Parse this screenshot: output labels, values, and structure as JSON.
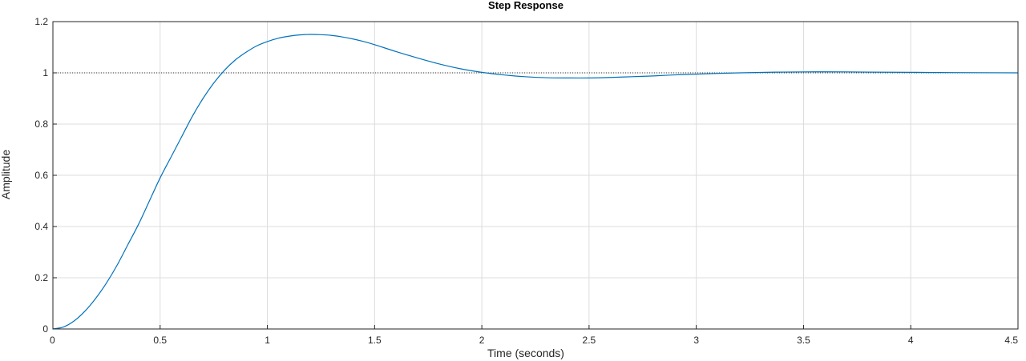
{
  "chart_data": {
    "type": "line",
    "title": "Step Response",
    "xlabel": "Time (seconds)",
    "ylabel": "Amplitude",
    "xlim": [
      0,
      4.5
    ],
    "ylim": [
      0,
      1.2
    ],
    "xticks": [
      "0",
      "0.5",
      "1",
      "1.5",
      "2",
      "2.5",
      "3",
      "3.5",
      "4",
      "4.5"
    ],
    "yticks": [
      "0",
      "0.2",
      "0.4",
      "0.6",
      "0.8",
      "1",
      "1.2"
    ],
    "grid": true,
    "reference_line": {
      "y": 1,
      "style": "dotted"
    },
    "series": [
      {
        "color": "#0072BD",
        "x": [
          0,
          0.05,
          0.1,
          0.15,
          0.2,
          0.25,
          0.3,
          0.35,
          0.4,
          0.45,
          0.5,
          0.55,
          0.6,
          0.65,
          0.7,
          0.75,
          0.8,
          0.85,
          0.9,
          0.95,
          1.0,
          1.05,
          1.1,
          1.15,
          1.2,
          1.25,
          1.3,
          1.35,
          1.4,
          1.45,
          1.5,
          1.6,
          1.7,
          1.8,
          1.9,
          2.0,
          2.1,
          2.2,
          2.3,
          2.4,
          2.5,
          2.6,
          2.7,
          2.8,
          2.9,
          3.0,
          3.2,
          3.4,
          3.6,
          3.8,
          4.0,
          4.2,
          4.5
        ],
        "y": [
          0,
          0.008,
          0.032,
          0.07,
          0.12,
          0.18,
          0.25,
          0.33,
          0.41,
          0.5,
          0.59,
          0.67,
          0.75,
          0.83,
          0.9,
          0.96,
          1.01,
          1.05,
          1.08,
          1.105,
          1.122,
          1.135,
          1.143,
          1.148,
          1.15,
          1.149,
          1.146,
          1.14,
          1.132,
          1.122,
          1.11,
          1.083,
          1.058,
          1.035,
          1.016,
          1.002,
          0.992,
          0.985,
          0.981,
          0.98,
          0.98,
          0.982,
          0.985,
          0.988,
          0.992,
          0.995,
          1.0,
          1.003,
          1.004,
          1.003,
          1.002,
          1.001,
          1.0
        ]
      }
    ]
  }
}
